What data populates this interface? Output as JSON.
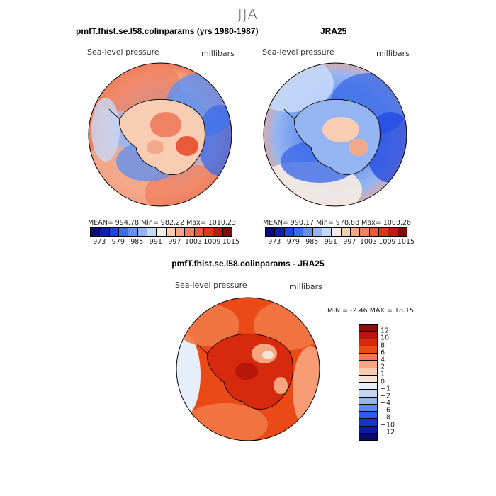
{
  "figure": {
    "season": "JJA",
    "variable_label": "Sea-level pressure",
    "units_label": "millibars"
  },
  "panels": {
    "model": {
      "title": "pmfT.fhist.se.l58.colinparams (yrs 1980-1987)",
      "variable_label": "Sea-level pressure",
      "units_label": "millibars",
      "stats": "MEAN= 994.78   Min= 982.22   Max= 1010.23",
      "colorbar_ticks": [
        "973",
        "979",
        "985",
        "991",
        "997",
        "1003",
        "1009",
        "1015"
      ],
      "colorbar_colors": [
        "#0a0a7a",
        "#0b1fb0",
        "#1f45e0",
        "#3e6ce8",
        "#6590ec",
        "#95b5f2",
        "#c5d8f8",
        "#f6ece4",
        "#f8cdb4",
        "#f4a88a",
        "#ef8262",
        "#e85a3a",
        "#d8381c",
        "#b81c0c",
        "#7e0a06"
      ]
    },
    "obs": {
      "title": "JRA25",
      "variable_label": "Sea-level pressure",
      "units_label": "millibars",
      "stats": "MEAN= 990.17   Min= 978.88   Max= 1003.26",
      "colorbar_ticks": [
        "973",
        "979",
        "985",
        "991",
        "997",
        "1003",
        "1009",
        "1015"
      ],
      "colorbar_colors": [
        "#0a0a7a",
        "#0b1fb0",
        "#1f45e0",
        "#3e6ce8",
        "#6590ec",
        "#95b5f2",
        "#c5d8f8",
        "#f6ece4",
        "#f8cdb4",
        "#f4a88a",
        "#ef8262",
        "#e85a3a",
        "#d8381c",
        "#b81c0c",
        "#7e0a06"
      ]
    },
    "diff": {
      "title": "pmfT.fhist.se.l58.colinparams - JRA25",
      "variable_label": "Sea-level pressure",
      "units_label": "millibars",
      "stats": "MIN =   -2.46  MAX =   18.15",
      "colorbar_ticks": [
        "12",
        "10",
        "8",
        "6",
        "4",
        "2",
        "1",
        "0",
        "−1",
        "−2",
        "−4",
        "−6",
        "−8",
        "−10",
        "−12"
      ],
      "colorbar_colors": [
        "#8a0d08",
        "#b5170a",
        "#d6290d",
        "#ea4a16",
        "#f27a47",
        "#f6a57e",
        "#f9cbb0",
        "#f7e4d6",
        "#e6eefa",
        "#c2d6f4",
        "#93b3ee",
        "#5f88ea",
        "#2f5ce6",
        "#1434c8",
        "#0a1aa2",
        "#050a6e"
      ]
    }
  },
  "colors": {
    "land_outline": "#000000",
    "accent_warm": "#e8542c",
    "accent_cool": "#3e6ce8"
  }
}
